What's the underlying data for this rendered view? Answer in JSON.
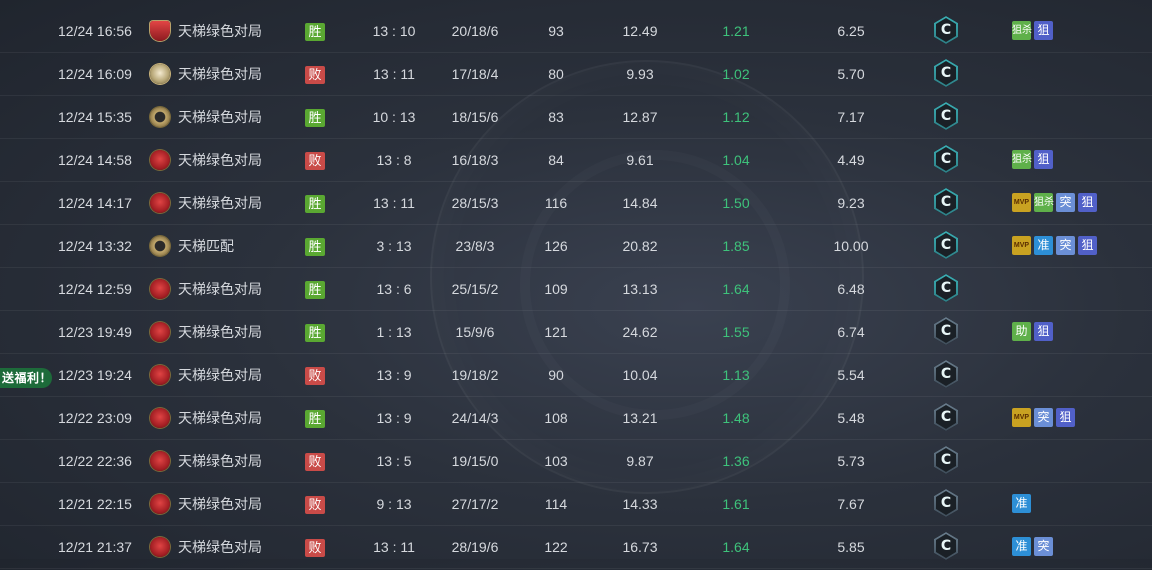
{
  "promo_text": "送福利！",
  "rows": [
    {
      "date": "12/24 16:56",
      "mode_icon": "shield-icon",
      "mode": "天梯绿色对局",
      "result": "胜",
      "result_type": "win",
      "score": "13 : 10",
      "kda": "20/18/6",
      "adr": "93",
      "hs": "12.49",
      "rating": "1.21",
      "we": "6.25",
      "rank": "C",
      "badges": [
        "狙杀",
        "狙"
      ]
    },
    {
      "date": "12/24 16:09",
      "mode_icon": "gold-medal-icon",
      "mode": "天梯绿色对局",
      "result": "败",
      "result_type": "loss",
      "score": "13 : 11",
      "kda": "17/18/4",
      "adr": "80",
      "hs": "9.93",
      "rating": "1.02",
      "we": "5.70",
      "rank": "C",
      "badges": []
    },
    {
      "date": "12/24 15:35",
      "mode_icon": "laurel-icon",
      "mode": "天梯绿色对局",
      "result": "胜",
      "result_type": "win",
      "score": "10 : 13",
      "kda": "18/15/6",
      "adr": "83",
      "hs": "12.87",
      "rating": "1.12",
      "we": "7.17",
      "rank": "C",
      "badges": []
    },
    {
      "date": "12/24 14:58",
      "mode_icon": "emblem-icon",
      "mode": "天梯绿色对局",
      "result": "败",
      "result_type": "loss",
      "score": "13 : 8",
      "kda": "16/18/3",
      "adr": "84",
      "hs": "9.61",
      "rating": "1.04",
      "we": "4.49",
      "rank": "C",
      "badges": [
        "狙杀",
        "狙"
      ]
    },
    {
      "date": "12/24 14:17",
      "mode_icon": "emblem-icon",
      "mode": "天梯绿色对局",
      "result": "胜",
      "result_type": "win",
      "score": "13 : 11",
      "kda": "28/15/3",
      "adr": "116",
      "hs": "14.84",
      "rating": "1.50",
      "we": "9.23",
      "rank": "C",
      "badges": [
        "MVP",
        "狙杀",
        "突",
        "狙"
      ]
    },
    {
      "date": "12/24 13:32",
      "mode_icon": "laurel-icon",
      "mode": "天梯匹配",
      "result": "胜",
      "result_type": "win",
      "score": "3 : 13",
      "kda": "23/8/3",
      "adr": "126",
      "hs": "20.82",
      "rating": "1.85",
      "we": "10.00",
      "rank": "C",
      "badges": [
        "MVP",
        "准",
        "突",
        "狙"
      ]
    },
    {
      "date": "12/24 12:59",
      "mode_icon": "emblem-icon",
      "mode": "天梯绿色对局",
      "result": "胜",
      "result_type": "win",
      "score": "13 : 6",
      "kda": "25/15/2",
      "adr": "109",
      "hs": "13.13",
      "rating": "1.64",
      "we": "6.48",
      "rank": "C",
      "badges": []
    },
    {
      "date": "12/23 19:49",
      "mode_icon": "emblem-icon",
      "mode": "天梯绿色对局",
      "result": "胜",
      "result_type": "win",
      "score": "1 : 13",
      "kda": "15/9/6",
      "adr": "121",
      "hs": "24.62",
      "rating": "1.55",
      "we": "6.74",
      "rank": "C",
      "badges": [
        "助",
        "狙"
      ]
    },
    {
      "date": "12/23 19:24",
      "mode_icon": "emblem-icon",
      "mode": "天梯绿色对局",
      "result": "败",
      "result_type": "loss",
      "score": "13 : 9",
      "kda": "19/18/2",
      "adr": "90",
      "hs": "10.04",
      "rating": "1.13",
      "we": "5.54",
      "rank": "C",
      "badges": []
    },
    {
      "date": "12/22 23:09",
      "mode_icon": "emblem-icon",
      "mode": "天梯绿色对局",
      "result": "胜",
      "result_type": "win",
      "score": "13 : 9",
      "kda": "24/14/3",
      "adr": "108",
      "hs": "13.21",
      "rating": "1.48",
      "we": "5.48",
      "rank": "C",
      "badges": [
        "MVP",
        "突",
        "狙"
      ]
    },
    {
      "date": "12/22 22:36",
      "mode_icon": "emblem-icon",
      "mode": "天梯绿色对局",
      "result": "败",
      "result_type": "loss",
      "score": "13 : 5",
      "kda": "19/15/0",
      "adr": "103",
      "hs": "9.87",
      "rating": "1.36",
      "we": "5.73",
      "rank": "C",
      "badges": []
    },
    {
      "date": "12/21 22:15",
      "mode_icon": "emblem-icon",
      "mode": "天梯绿色对局",
      "result": "败",
      "result_type": "loss",
      "score": "9 : 13",
      "kda": "27/17/2",
      "adr": "114",
      "hs": "14.33",
      "rating": "1.61",
      "we": "7.67",
      "rank": "C",
      "badges": [
        "准"
      ]
    },
    {
      "date": "12/21 21:37",
      "mode_icon": "emblem-icon",
      "mode": "天梯绿色对局",
      "result": "败",
      "result_type": "loss",
      "score": "13 : 11",
      "kda": "28/19/6",
      "adr": "122",
      "hs": "16.73",
      "rating": "1.64",
      "we": "5.85",
      "rank": "C",
      "badges": [
        "准",
        "突"
      ]
    }
  ]
}
